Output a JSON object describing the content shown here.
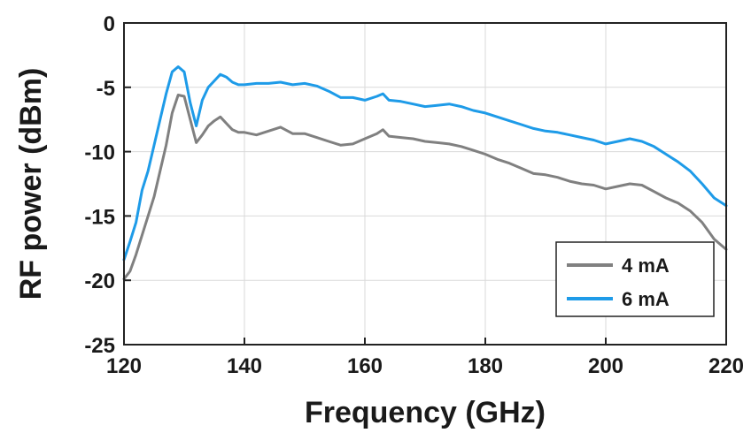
{
  "chart_data": {
    "type": "line",
    "title": "",
    "xlabel": "Frequency (GHz)",
    "ylabel": "RF power (dBm)",
    "xlim": [
      120,
      220
    ],
    "ylim": [
      -25,
      0
    ],
    "xticks": [
      120,
      140,
      160,
      180,
      200,
      220
    ],
    "yticks": [
      0,
      -5,
      -10,
      -15,
      -20,
      -25
    ],
    "grid": true,
    "legend_position": "bottom-right",
    "x": [
      120,
      121,
      122,
      123,
      124,
      125,
      126,
      127,
      128,
      129,
      130,
      131,
      132,
      133,
      134,
      135,
      136,
      137,
      138,
      139,
      140,
      142,
      144,
      146,
      148,
      150,
      152,
      154,
      156,
      158,
      160,
      162,
      163,
      164,
      166,
      168,
      170,
      172,
      174,
      176,
      178,
      180,
      182,
      184,
      186,
      188,
      190,
      192,
      194,
      196,
      198,
      200,
      202,
      204,
      206,
      208,
      210,
      212,
      214,
      216,
      218,
      220
    ],
    "series": [
      {
        "name": "4 mA",
        "color": "#808080",
        "values": [
          -19.9,
          -19.3,
          -18.0,
          -16.5,
          -15.0,
          -13.5,
          -11.5,
          -9.5,
          -7.0,
          -5.6,
          -5.7,
          -7.5,
          -9.3,
          -8.7,
          -8.0,
          -7.6,
          -7.3,
          -7.8,
          -8.3,
          -8.5,
          -8.5,
          -8.7,
          -8.4,
          -8.1,
          -8.6,
          -8.6,
          -8.9,
          -9.2,
          -9.5,
          -9.4,
          -9.0,
          -8.6,
          -8.3,
          -8.8,
          -8.9,
          -9.0,
          -9.2,
          -9.3,
          -9.4,
          -9.6,
          -9.9,
          -10.2,
          -10.6,
          -10.9,
          -11.3,
          -11.7,
          -11.8,
          -12.0,
          -12.3,
          -12.5,
          -12.6,
          -12.9,
          -12.7,
          -12.5,
          -12.6,
          -13.1,
          -13.6,
          -14.0,
          -14.6,
          -15.5,
          -16.8,
          -17.6
        ]
      },
      {
        "name": "6 mA",
        "color": "#1e9be8",
        "values": [
          -18.4,
          -17.0,
          -15.5,
          -13.0,
          -11.5,
          -9.5,
          -7.5,
          -5.5,
          -3.8,
          -3.4,
          -3.8,
          -6.2,
          -8.0,
          -6.0,
          -5.0,
          -4.5,
          -4.0,
          -4.2,
          -4.6,
          -4.8,
          -4.8,
          -4.7,
          -4.7,
          -4.6,
          -4.8,
          -4.7,
          -4.9,
          -5.3,
          -5.8,
          -5.8,
          -6.0,
          -5.7,
          -5.5,
          -6.0,
          -6.1,
          -6.3,
          -6.5,
          -6.4,
          -6.3,
          -6.5,
          -6.8,
          -7.0,
          -7.3,
          -7.6,
          -7.9,
          -8.2,
          -8.4,
          -8.5,
          -8.7,
          -8.9,
          -9.1,
          -9.4,
          -9.2,
          -9.0,
          -9.2,
          -9.6,
          -10.2,
          -10.8,
          -11.5,
          -12.5,
          -13.6,
          -14.2
        ]
      }
    ]
  }
}
